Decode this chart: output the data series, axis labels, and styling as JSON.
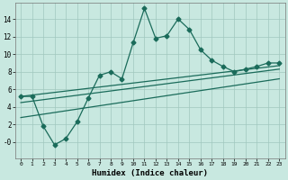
{
  "title": "",
  "xlabel": "Humidex (Indice chaleur)",
  "bg_color": "#c8e8e0",
  "grid_color": "#a0c8be",
  "line_color": "#1a6b5a",
  "xlim": [
    -0.5,
    23.5
  ],
  "ylim": [
    -1.8,
    15.8
  ],
  "yticks": [
    0,
    2,
    4,
    6,
    8,
    10,
    12,
    14
  ],
  "ytick_labels": [
    "-0",
    "2",
    "4",
    "6",
    "8",
    "10",
    "12",
    "14"
  ],
  "xticks": [
    0,
    1,
    2,
    3,
    4,
    5,
    6,
    7,
    8,
    9,
    10,
    11,
    12,
    13,
    14,
    15,
    16,
    17,
    18,
    19,
    20,
    21,
    22,
    23
  ],
  "main_line_x": [
    0,
    1,
    2,
    3,
    4,
    5,
    6,
    7,
    8,
    9,
    10,
    11,
    12,
    13,
    14,
    15,
    16,
    17,
    18,
    19,
    20,
    21,
    22,
    23
  ],
  "main_line_y": [
    5.2,
    5.2,
    1.8,
    -0.3,
    0.4,
    2.3,
    5.0,
    7.6,
    8.0,
    7.2,
    11.3,
    15.2,
    11.8,
    12.1,
    14.0,
    12.8,
    10.5,
    9.3,
    8.6,
    8.0,
    8.3,
    8.6,
    9.0,
    9.0
  ],
  "line2_x": [
    0,
    23
  ],
  "line2_y": [
    5.2,
    8.7
  ],
  "line3_x": [
    0,
    23
  ],
  "line3_y": [
    4.5,
    8.3
  ],
  "line4_x": [
    0,
    23
  ],
  "line4_y": [
    2.8,
    7.2
  ],
  "marker": "D",
  "markersize": 2.5,
  "linewidth": 0.9
}
